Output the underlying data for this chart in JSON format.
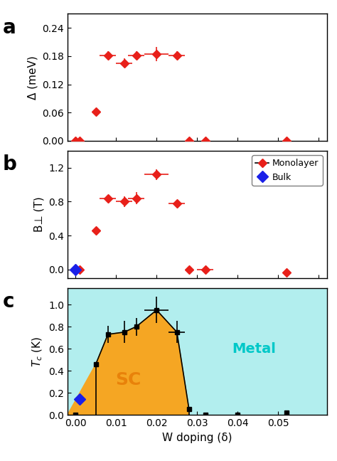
{
  "panel_a": {
    "x": [
      0.0,
      0.001,
      0.005,
      0.008,
      0.012,
      0.015,
      0.02,
      0.025,
      0.028,
      0.032,
      0.052
    ],
    "y": [
      0.0,
      0.0,
      0.062,
      0.182,
      0.165,
      0.182,
      0.185,
      0.182,
      0.0,
      0.0,
      0.0
    ],
    "xerr": [
      0.0,
      0.0,
      0.0,
      0.002,
      0.002,
      0.002,
      0.003,
      0.002,
      0.0,
      0.0,
      0.0
    ],
    "yerr": [
      0.0,
      0.0,
      0.005,
      0.008,
      0.01,
      0.008,
      0.015,
      0.008,
      0.0,
      0.0,
      0.0
    ],
    "ylim": [
      0.0,
      0.27
    ],
    "yticks": [
      0.0,
      0.06,
      0.12,
      0.18,
      0.24
    ],
    "ylabel": "Δ (meV)"
  },
  "panel_b": {
    "x_mono": [
      0.001,
      0.005,
      0.008,
      0.012,
      0.015,
      0.02,
      0.025,
      0.028,
      0.032,
      0.052
    ],
    "y_mono": [
      0.0,
      0.46,
      0.84,
      0.8,
      0.84,
      1.12,
      0.78,
      0.0,
      0.0,
      -0.04
    ],
    "xerr_mono": [
      0.0,
      0.0,
      0.002,
      0.002,
      0.002,
      0.003,
      0.002,
      0.0,
      0.002,
      0.0
    ],
    "yerr_mono": [
      0.0,
      0.0,
      0.04,
      0.06,
      0.07,
      0.06,
      0.04,
      0.0,
      0.0,
      0.0
    ],
    "x_bulk": [
      0.0
    ],
    "y_bulk": [
      0.0
    ],
    "ylim": [
      -0.1,
      1.4
    ],
    "yticks": [
      0.0,
      0.4,
      0.8,
      1.2
    ],
    "ylabel": "B⊥ (T)"
  },
  "panel_c": {
    "x_sq": [
      0.0,
      0.005,
      0.008,
      0.012,
      0.015,
      0.02,
      0.025,
      0.028,
      0.032,
      0.04,
      0.052
    ],
    "y_sq": [
      0.0,
      0.46,
      0.73,
      0.75,
      0.8,
      0.95,
      0.75,
      0.05,
      0.0,
      0.0,
      0.02
    ],
    "xerr_sq": [
      0.0,
      0.0,
      0.0,
      0.0,
      0.0,
      0.003,
      0.002,
      0.0,
      0.0,
      0.0,
      0.0
    ],
    "yerr_sq": [
      0.0,
      0.0,
      0.08,
      0.1,
      0.08,
      0.12,
      0.1,
      0.0,
      0.0,
      0.0,
      0.0
    ],
    "x_bulk": [
      0.001
    ],
    "y_bulk": [
      0.14
    ],
    "fill_x": [
      0.005,
      0.008,
      0.012,
      0.015,
      0.02,
      0.025,
      0.028
    ],
    "fill_y": [
      0.46,
      0.73,
      0.75,
      0.8,
      0.95,
      0.75,
      0.05
    ],
    "ylim": [
      0.0,
      1.15
    ],
    "yticks": [
      0.0,
      0.2,
      0.4,
      0.6,
      0.8,
      1.0
    ],
    "ylabel": "$T_c$ (K)"
  },
  "xlim": [
    -0.002,
    0.062
  ],
  "xticks": [
    0.0,
    0.01,
    0.02,
    0.03,
    0.04,
    0.05
  ],
  "xticklabels": [
    "0.00",
    "0.01",
    "0.02",
    "0.03",
    "0.04",
    "0.05"
  ],
  "xlabel": "W doping (δ)",
  "color_red": "#e8201a",
  "color_blue": "#1a20e8",
  "color_black": "#000000",
  "color_fill_sc": "#f5a623",
  "color_fill_metal": "#b2eeee",
  "label_monolayer": "Monolayer",
  "label_bulk": "Bulk",
  "label_sc": "SC",
  "label_metal": "Metal",
  "panel_labels": [
    "a",
    "b",
    "c"
  ]
}
